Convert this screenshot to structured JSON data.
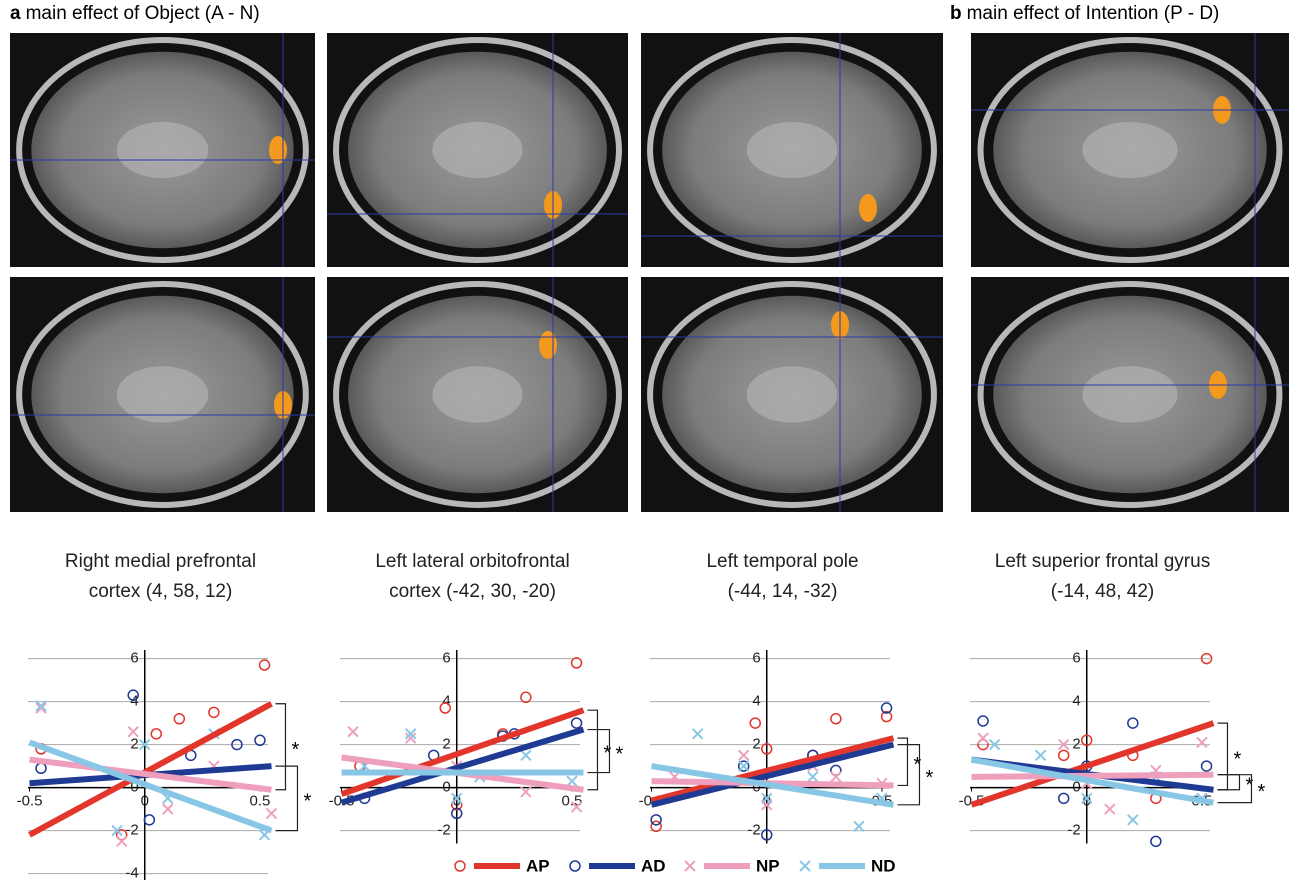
{
  "panel_labels": [
    {
      "letter": "a",
      "text": "main effect of Object (A - N)"
    },
    {
      "letter": "b",
      "text": "main effect of Intention (P - D)"
    }
  ],
  "chart_data": [
    {
      "type": "scatter",
      "title": [
        "Right medial prefrontal",
        "cortex (4, 58, 12)"
      ],
      "xlim": [
        -0.55,
        0.6
      ],
      "xticks": [
        -0.5,
        0,
        0.5
      ],
      "ylim": [
        -4.3,
        6.4
      ],
      "yticks": [
        -4,
        -2,
        0,
        2,
        4,
        6
      ],
      "grid": true,
      "fit_x": [
        -0.5,
        0.55
      ],
      "series": [
        {
          "name": "AP",
          "color": "#e2362c",
          "marker": "circle",
          "x": [
            -0.45,
            -0.1,
            0.05,
            0.15,
            0.3,
            0.52
          ],
          "values": [
            1.8,
            -2.2,
            2.5,
            3.2,
            3.5,
            5.7
          ],
          "fit": [
            -2.2,
            3.9
          ]
        },
        {
          "name": "AD",
          "color": "#1f3a93",
          "marker": "circle",
          "x": [
            -0.45,
            -0.05,
            0.02,
            0.2,
            0.4,
            0.5
          ],
          "values": [
            0.9,
            4.3,
            -1.5,
            1.5,
            2.0,
            2.2
          ],
          "fit": [
            0.2,
            1.0
          ]
        },
        {
          "name": "NP",
          "color": "#ee9fbd",
          "marker": "cross",
          "x": [
            -0.45,
            -0.1,
            -0.05,
            0.1,
            0.3,
            0.55
          ],
          "values": [
            3.7,
            -2.5,
            2.6,
            -1.0,
            1.0,
            -1.2
          ],
          "fit": [
            1.3,
            -0.1
          ]
        },
        {
          "name": "ND",
          "color": "#88c6e6",
          "marker": "cross",
          "x": [
            -0.45,
            -0.12,
            0.0,
            0.1,
            0.3,
            0.52
          ],
          "values": [
            3.8,
            -2.0,
            2.0,
            -0.5,
            2.5,
            -2.2
          ],
          "fit": [
            2.1,
            -2.0
          ]
        }
      ],
      "significance": [
        {
          "pair": [
            "AP",
            "NP"
          ],
          "label": "*"
        },
        {
          "pair": [
            "AD",
            "ND"
          ],
          "label": "*"
        }
      ]
    },
    {
      "type": "scatter",
      "title": [
        "Left lateral orbitofrontal",
        "cortex (-42, 30, -20)"
      ],
      "xlim": [
        -0.55,
        0.6
      ],
      "xticks": [
        -0.5,
        0,
        0.5
      ],
      "ylim": [
        -2.6,
        6.4
      ],
      "yticks": [
        -2,
        0,
        2,
        4,
        6
      ],
      "grid": true,
      "fit_x": [
        -0.5,
        0.55
      ],
      "series": [
        {
          "name": "AP",
          "color": "#e2362c",
          "marker": "circle",
          "x": [
            -0.42,
            -0.05,
            0.0,
            0.2,
            0.3,
            0.52
          ],
          "values": [
            1.0,
            3.7,
            -0.8,
            2.5,
            4.2,
            5.8
          ],
          "fit": [
            -0.3,
            3.6
          ]
        },
        {
          "name": "AD",
          "color": "#1f3a93",
          "marker": "circle",
          "x": [
            -0.4,
            -0.1,
            0.0,
            0.2,
            0.25,
            0.52
          ],
          "values": [
            -0.5,
            1.5,
            -1.2,
            2.4,
            2.5,
            3.0
          ],
          "fit": [
            -0.7,
            2.7
          ]
        },
        {
          "name": "NP",
          "color": "#ee9fbd",
          "marker": "cross",
          "x": [
            -0.45,
            -0.2,
            0.0,
            0.1,
            0.3,
            0.52
          ],
          "values": [
            2.6,
            2.3,
            1.0,
            0.5,
            -0.2,
            -0.9
          ],
          "fit": [
            1.4,
            -0.1
          ]
        },
        {
          "name": "ND",
          "color": "#88c6e6",
          "marker": "cross",
          "x": [
            -0.4,
            -0.2,
            0.0,
            0.1,
            0.3,
            0.5
          ],
          "values": [
            1.0,
            2.5,
            -0.5,
            0.5,
            1.5,
            0.3
          ],
          "fit": [
            0.7,
            0.7
          ]
        }
      ],
      "significance": [
        {
          "pair": [
            "AP",
            "NP"
          ],
          "label": "*"
        },
        {
          "pair": [
            "AD",
            "ND"
          ],
          "label": "*"
        }
      ]
    },
    {
      "type": "scatter",
      "title": [
        "Left temporal pole",
        "(-44, 14, -32)"
      ],
      "xlim": [
        -0.55,
        0.6
      ],
      "xticks": [
        -0.5,
        0,
        0.5
      ],
      "ylim": [
        -2.6,
        6.4
      ],
      "yticks": [
        -2,
        0,
        2,
        4,
        6
      ],
      "grid": true,
      "fit_x": [
        -0.5,
        0.55
      ],
      "series": [
        {
          "name": "AP",
          "color": "#e2362c",
          "marker": "circle",
          "x": [
            -0.48,
            -0.05,
            0.0,
            0.2,
            0.3,
            0.52
          ],
          "values": [
            -1.8,
            3.0,
            1.8,
            1.5,
            3.2,
            3.3
          ],
          "fit": [
            -0.6,
            2.3
          ]
        },
        {
          "name": "AD",
          "color": "#1f3a93",
          "marker": "circle",
          "x": [
            -0.48,
            -0.1,
            0.0,
            0.2,
            0.3,
            0.52
          ],
          "values": [
            -1.5,
            1.0,
            -2.2,
            1.5,
            0.8,
            3.7
          ],
          "fit": [
            -0.8,
            2.0
          ]
        },
        {
          "name": "NP",
          "color": "#ee9fbd",
          "marker": "cross",
          "x": [
            -0.4,
            -0.1,
            0.0,
            0.2,
            0.3,
            0.5
          ],
          "values": [
            0.5,
            1.5,
            -0.8,
            1.0,
            0.5,
            0.2
          ],
          "fit": [
            0.3,
            0.1
          ]
        },
        {
          "name": "ND",
          "color": "#88c6e6",
          "marker": "cross",
          "x": [
            -0.3,
            -0.1,
            0.0,
            0.2,
            0.4,
            0.5
          ],
          "values": [
            2.5,
            1.0,
            -0.5,
            0.5,
            -1.8,
            -0.5
          ],
          "fit": [
            1.0,
            -0.8
          ]
        }
      ],
      "significance": [
        {
          "pair": [
            "AP",
            "NP"
          ],
          "label": "*"
        },
        {
          "pair": [
            "AD",
            "ND"
          ],
          "label": "*"
        }
      ]
    },
    {
      "type": "scatter",
      "title": [
        "Left superior frontal gyrus",
        "(-14, 48, 42)"
      ],
      "xlim": [
        -0.55,
        0.6
      ],
      "xticks": [
        -0.5,
        0,
        0.5
      ],
      "ylim": [
        -2.6,
        6.4
      ],
      "yticks": [
        -2,
        0,
        2,
        4,
        6
      ],
      "grid": true,
      "fit_x": [
        -0.5,
        0.55
      ],
      "series": [
        {
          "name": "AP",
          "color": "#e2362c",
          "marker": "circle",
          "x": [
            -0.45,
            -0.1,
            0.0,
            0.2,
            0.3,
            0.52
          ],
          "values": [
            2.0,
            1.5,
            2.2,
            1.5,
            -0.5,
            6.0
          ],
          "fit": [
            -0.8,
            3.0
          ]
        },
        {
          "name": "AD",
          "color": "#1f3a93",
          "marker": "circle",
          "x": [
            -0.45,
            -0.1,
            0.0,
            0.2,
            0.3,
            0.52
          ],
          "values": [
            3.1,
            -0.5,
            1.0,
            3.0,
            -2.5,
            1.0
          ],
          "fit": [
            1.3,
            -0.1
          ]
        },
        {
          "name": "NP",
          "color": "#ee9fbd",
          "marker": "cross",
          "x": [
            -0.45,
            -0.1,
            0.0,
            0.1,
            0.3,
            0.5
          ],
          "values": [
            2.3,
            2.0,
            0.2,
            -1.0,
            0.8,
            2.1
          ],
          "fit": [
            0.5,
            0.6
          ]
        },
        {
          "name": "ND",
          "color": "#88c6e6",
          "marker": "cross",
          "x": [
            -0.4,
            -0.2,
            0.0,
            0.2,
            0.3,
            0.5
          ],
          "values": [
            2.0,
            1.5,
            -0.5,
            -1.5,
            0.5,
            -0.5
          ],
          "fit": [
            1.3,
            -0.7
          ]
        }
      ],
      "significance": [
        {
          "pair": [
            "AP",
            "AD"
          ],
          "label": "*"
        },
        {
          "pair": [
            "AD",
            "NP"
          ],
          "label": "*"
        },
        {
          "pair": [
            "NP",
            "ND"
          ],
          "label": "*"
        }
      ]
    }
  ]
}
